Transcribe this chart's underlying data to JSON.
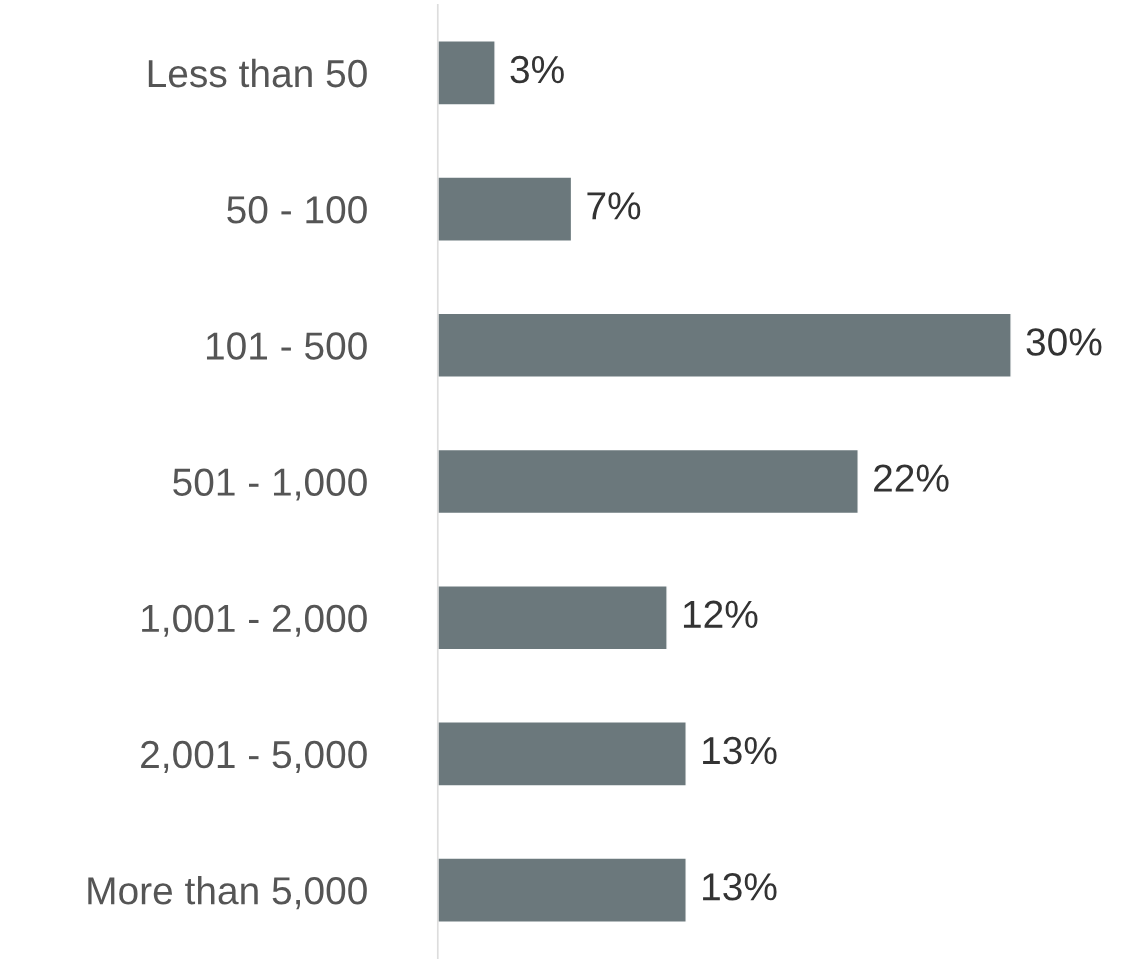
{
  "chart_data": {
    "type": "bar",
    "orientation": "horizontal",
    "categories": [
      "Less than 50",
      "50 - 100",
      "101 - 500",
      "501 - 1,000",
      "1,001 - 2,000",
      "2,001 - 5,000",
      "More than 5,000"
    ],
    "values": [
      3,
      7,
      30,
      22,
      12,
      13,
      13
    ],
    "color": "#6b787c",
    "value_labels": [
      "3%",
      "7%",
      "30%",
      "22%",
      "12%",
      "13%",
      "13%"
    ],
    "grid": false,
    "legend": false
  }
}
